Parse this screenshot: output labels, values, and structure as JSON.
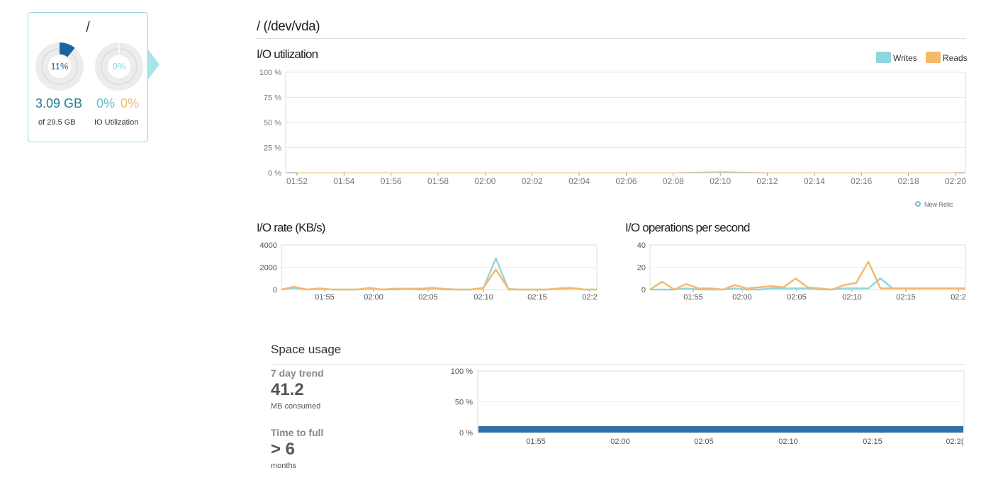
{
  "disk": {
    "title": "/",
    "used_pct_label": "11%",
    "used_fraction": 0.11,
    "io_pct_label": "0%",
    "io_fraction": 0.0,
    "used_value": "3.09 GB",
    "total_label": "of 29.5 GB",
    "writes_pct": "0%",
    "reads_pct": "0%",
    "io_label": "IO Utilization"
  },
  "main": {
    "title": "/ (/dev/vda)"
  },
  "colors": {
    "writes": "#8fd7dc",
    "reads": "#f6b96b",
    "used": "#1a65a0",
    "space_bar": "#2f6fa6",
    "teal_text": "#1f7f8c"
  },
  "io_utilization": {
    "title": "I/O utilization",
    "legend": {
      "writes": "Writes",
      "reads": "Reads"
    },
    "attribution": "New Relic",
    "chart_data": {
      "type": "area",
      "x": [
        "01:52",
        "01:54",
        "01:56",
        "01:58",
        "02:00",
        "02:02",
        "02:04",
        "02:06",
        "02:08",
        "02:10",
        "02:12",
        "02:14",
        "02:16",
        "02:18",
        "02:20"
      ],
      "y_ticks": [
        "100 %",
        "75 %",
        "50 %",
        "25 %",
        "0 %"
      ],
      "ylim": [
        0,
        100
      ],
      "series": [
        {
          "name": "Writes",
          "values": [
            0,
            0,
            0,
            0,
            0,
            0,
            0,
            0,
            0,
            1,
            0,
            0,
            0,
            0,
            0
          ]
        },
        {
          "name": "Reads",
          "values": [
            0,
            0,
            0,
            0,
            0,
            0,
            0,
            0,
            0,
            0,
            0,
            0,
            0,
            0,
            0
          ]
        }
      ]
    }
  },
  "io_rate": {
    "title": "I/O rate (KB/s)",
    "chart_data": {
      "type": "line",
      "x_ticks": [
        "01:55",
        "02:00",
        "02:05",
        "02:10",
        "02:15",
        "02:2"
      ],
      "y_ticks": [
        "4000",
        "2000",
        "0"
      ],
      "ylim": [
        0,
        4000
      ],
      "series": [
        {
          "name": "Writes",
          "values": [
            0,
            150,
            0,
            50,
            0,
            0,
            0,
            80,
            0,
            0,
            50,
            0,
            80,
            0,
            0,
            0,
            100,
            2800,
            0,
            0,
            0,
            0,
            50,
            100,
            0,
            0
          ]
        },
        {
          "name": "Reads",
          "values": [
            0,
            250,
            0,
            100,
            0,
            0,
            0,
            150,
            0,
            80,
            80,
            80,
            150,
            50,
            0,
            0,
            150,
            1800,
            50,
            0,
            0,
            0,
            100,
            150,
            0,
            0
          ]
        }
      ]
    }
  },
  "io_ops": {
    "title": "I/O operations per second",
    "chart_data": {
      "type": "line",
      "x_ticks": [
        "01:55",
        "02:00",
        "02:05",
        "02:10",
        "02:15",
        "02:2"
      ],
      "y_ticks": [
        "40",
        "20",
        "0"
      ],
      "ylim": [
        0,
        40
      ],
      "series": [
        {
          "name": "Writes",
          "values": [
            0,
            0,
            0,
            1,
            0,
            0,
            0,
            1,
            0,
            0,
            1,
            1,
            1,
            1,
            0,
            0,
            1,
            1,
            1,
            10,
            1,
            1,
            1,
            1,
            1,
            1,
            1
          ]
        },
        {
          "name": "Reads",
          "values": [
            0,
            7,
            0,
            5,
            1,
            1,
            0,
            4,
            1,
            2,
            3,
            2,
            10,
            2,
            1,
            0,
            4,
            6,
            25,
            1,
            1,
            1,
            1,
            1,
            1,
            1,
            1
          ]
        }
      ]
    }
  },
  "space_usage": {
    "title": "Space usage",
    "trend_label": "7 day trend",
    "trend_value": "41.2",
    "trend_unit": "MB consumed",
    "ttf_label": "Time to full",
    "ttf_value": "> 6",
    "ttf_unit": "months",
    "chart_data": {
      "type": "area",
      "x_ticks": [
        "01:55",
        "02:00",
        "02:05",
        "02:10",
        "02:15",
        "02:2("
      ],
      "y_ticks": [
        "100 %",
        "50 %",
        "0 %"
      ],
      "ylim": [
        0,
        100
      ],
      "series": [
        {
          "name": "",
          "values": [
            11,
            11
          ]
        }
      ]
    }
  }
}
